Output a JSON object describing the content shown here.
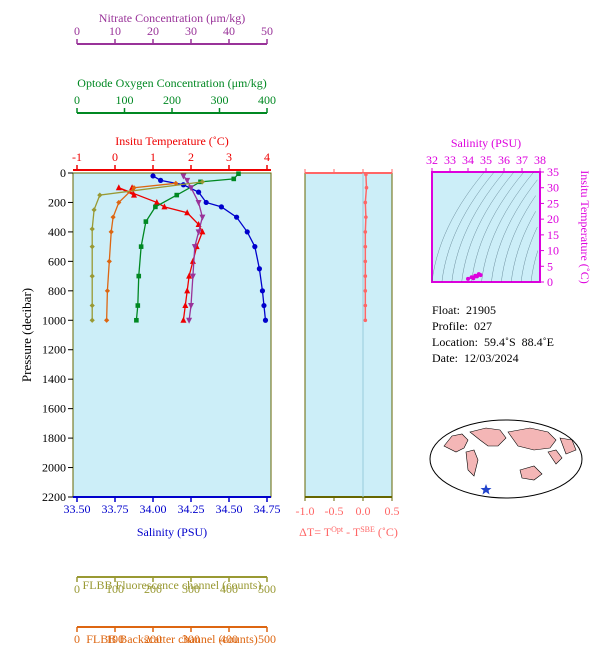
{
  "colors": {
    "nitrate": "#993399",
    "oxygen": "#008822",
    "temperature": "#ee0000",
    "salinity": "#0000cc",
    "fluorescence": "#999933",
    "backscatter": "#dd6611",
    "delta_t": "#ff6666",
    "ts_axis": "#dd00dd",
    "plot_bg": "#cceef8",
    "land": "#f4b6b6",
    "ocean": "#ffffff"
  },
  "float_info": {
    "float": "Float:  21905",
    "profile": "Profile:  027",
    "location": "Location:  59.4˚S  88.4˚E",
    "date": "Date:  12/03/2024"
  },
  "chart_data": [
    {
      "type": "line",
      "panel": "profile",
      "ylabel": "Pressure (decibar)",
      "ylim": [
        2200,
        0
      ],
      "yticks": [
        0,
        200,
        400,
        600,
        800,
        1000,
        1200,
        1400,
        1600,
        1800,
        2000,
        2200
      ],
      "axes": [
        {
          "key": "nitrate",
          "label": "Nitrate Concentration (μm/kg)",
          "lim": [
            0,
            50
          ],
          "ticks": [
            0,
            10,
            20,
            30,
            40,
            50
          ]
        },
        {
          "key": "oxygen",
          "label": "Optode Oxygen Concentration (μm/kg)",
          "lim": [
            0,
            400
          ],
          "ticks": [
            0,
            100,
            200,
            300,
            400
          ]
        },
        {
          "key": "temperature",
          "label": "Insitu Temperature (˚C)",
          "lim": [
            -1,
            4
          ],
          "ticks": [
            -1,
            0,
            1,
            2,
            3,
            4
          ]
        },
        {
          "key": "salinity",
          "label": "Salinity (PSU)",
          "lim": [
            33.5,
            34.75
          ],
          "ticks": [
            33.5,
            33.75,
            34.0,
            34.25,
            34.5,
            34.75
          ],
          "ticklabels": [
            "33.50",
            "33.75",
            "34.00",
            "34.25",
            "34.50",
            "34.75"
          ]
        },
        {
          "key": "fluorescence",
          "label": "FLBB Fluorescence channel (counts)",
          "lim": [
            0,
            500
          ],
          "ticks": [
            0,
            100,
            200,
            300,
            400,
            500
          ]
        },
        {
          "key": "backscatter",
          "label": "FLBB Backscatter channel (counts)",
          "lim": [
            0,
            500
          ],
          "ticks": [
            0,
            100,
            200,
            300,
            400,
            500
          ]
        }
      ],
      "series": [
        {
          "key": "temperature",
          "marker": "triangle",
          "points": [
            [
              0.45,
              100
            ],
            [
              0.5,
              150
            ],
            [
              0.1,
              100
            ],
            [
              1.1,
              200
            ],
            [
              1.3,
              230
            ],
            [
              1.9,
              270
            ],
            [
              2.2,
              350
            ],
            [
              2.3,
              400
            ],
            [
              2.15,
              500
            ],
            [
              2.05,
              600
            ],
            [
              1.95,
              700
            ],
            [
              1.9,
              800
            ],
            [
              1.85,
              900
            ],
            [
              1.8,
              1000
            ]
          ]
        },
        {
          "key": "salinity",
          "marker": "circle",
          "points": [
            [
              34.0,
              20
            ],
            [
              34.05,
              50
            ],
            [
              34.2,
              80
            ],
            [
              34.3,
              130
            ],
            [
              34.35,
              200
            ],
            [
              34.45,
              230
            ],
            [
              34.55,
              300
            ],
            [
              34.62,
              400
            ],
            [
              34.67,
              500
            ],
            [
              34.7,
              650
            ],
            [
              34.72,
              800
            ],
            [
              34.73,
              900
            ],
            [
              34.74,
              1000
            ]
          ]
        },
        {
          "key": "oxygen",
          "marker": "square",
          "points": [
            [
              340,
              5
            ],
            [
              330,
              40
            ],
            [
              260,
              60
            ],
            [
              210,
              150
            ],
            [
              165,
              230
            ],
            [
              145,
              330
            ],
            [
              135,
              500
            ],
            [
              130,
              700
            ],
            [
              128,
              900
            ],
            [
              125,
              1000
            ]
          ]
        },
        {
          "key": "nitrate",
          "marker": "triangle-down",
          "points": [
            [
              28,
              20
            ],
            [
              29,
              50
            ],
            [
              30,
              100
            ],
            [
              32,
              200
            ],
            [
              33,
              300
            ],
            [
              32,
              400
            ],
            [
              31,
              500
            ],
            [
              30.5,
              700
            ],
            [
              30,
              900
            ],
            [
              29.5,
              1000
            ]
          ]
        },
        {
          "key": "fluorescence",
          "marker": "diamond",
          "points": [
            [
              330,
              60
            ],
            [
              60,
              150
            ],
            [
              45,
              250
            ],
            [
              40,
              380
            ],
            [
              40,
              500
            ],
            [
              40,
              700
            ],
            [
              40,
              900
            ],
            [
              40,
              1000
            ]
          ]
        },
        {
          "key": "backscatter",
          "marker": "diamond",
          "points": [
            [
              260,
              70
            ],
            [
              150,
              100
            ],
            [
              110,
              200
            ],
            [
              95,
              300
            ],
            [
              90,
              400
            ],
            [
              85,
              600
            ],
            [
              80,
              800
            ],
            [
              78,
              1000
            ]
          ]
        }
      ]
    },
    {
      "type": "scatter",
      "panel": "delta_t",
      "xlabel": "ΔT= T",
      "xlabel_sup1": "Opt",
      "xlabel_mid": " - T",
      "xlabel_sup2": "SBE",
      "xlabel_end": " (˚C)",
      "xlim": [
        -1.0,
        0.5
      ],
      "xticks": [
        -1.0,
        -0.5,
        0.0,
        0.5
      ],
      "xticklabels": [
        "-1.0",
        "-0.5",
        "0.0",
        "0.5"
      ],
      "ylim": [
        2200,
        0
      ],
      "points": [
        [
          0.05,
          10
        ],
        [
          0.06,
          100
        ],
        [
          0.04,
          200
        ],
        [
          0.05,
          300
        ],
        [
          0.04,
          400
        ],
        [
          0.04,
          500
        ],
        [
          0.04,
          600
        ],
        [
          0.04,
          700
        ],
        [
          0.04,
          800
        ],
        [
          0.04,
          900
        ],
        [
          0.04,
          1000
        ]
      ]
    },
    {
      "type": "scatter",
      "panel": "ts",
      "xlabel": "Salinity (PSU)",
      "ylabel": "Insitu Temperature (˚C)",
      "xlim": [
        32,
        38
      ],
      "xticks": [
        32,
        33,
        34,
        35,
        36,
        37,
        38
      ],
      "ylim": [
        0,
        35
      ],
      "yticks": [
        0,
        5,
        10,
        15,
        20,
        25,
        30,
        35
      ],
      "points": [
        [
          34.0,
          1.0
        ],
        [
          34.2,
          1.5
        ],
        [
          34.4,
          2.0
        ],
        [
          34.6,
          2.5
        ],
        [
          34.7,
          2.2
        ],
        [
          34.3,
          1.2
        ],
        [
          34.5,
          1.8
        ]
      ]
    }
  ]
}
